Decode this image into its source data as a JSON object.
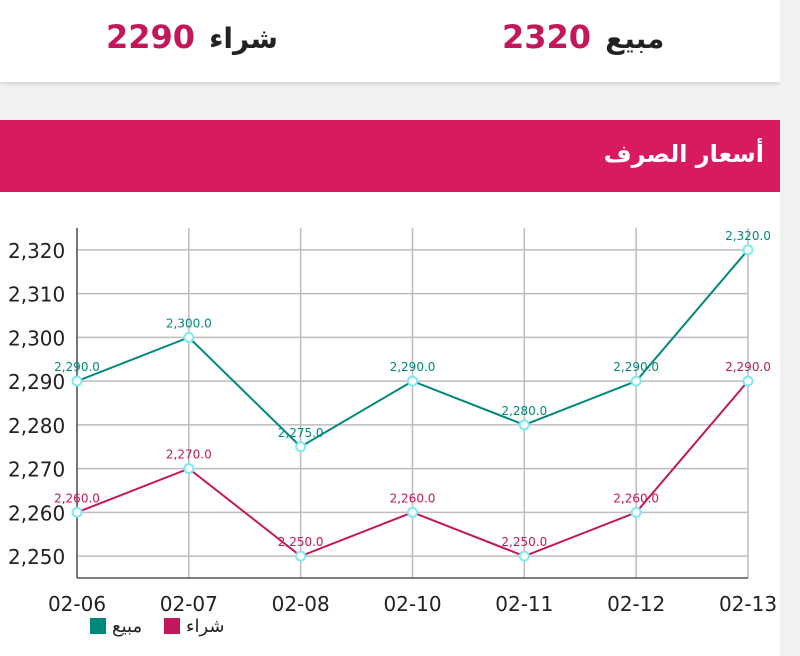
{
  "rates": {
    "buy": {
      "label": "شراء",
      "value": "2290"
    },
    "sell": {
      "label": "مبيع",
      "value": "2320"
    }
  },
  "chart_header": {
    "title": "أسعار الصرف"
  },
  "colors": {
    "accent": "#d81b60",
    "value_text": "#c2185b",
    "sell_series": "#00897b",
    "buy_series": "#c2185b",
    "point_outline": "#7fe9f0"
  },
  "chart_data": {
    "type": "line",
    "categories": [
      "02-06",
      "02-07",
      "02-08",
      "02-10",
      "02-11",
      "02-12",
      "02-13"
    ],
    "series": [
      {
        "name": "مبيع",
        "color": "#00897b",
        "values": [
          2290,
          2300,
          2275,
          2290,
          2280,
          2290,
          2320
        ]
      },
      {
        "name": "شراء",
        "color": "#c2185b",
        "values": [
          2260,
          2270,
          2250,
          2260,
          2250,
          2260,
          2290
        ]
      }
    ],
    "y_ticks": [
      2250,
      2260,
      2270,
      2280,
      2290,
      2300,
      2310,
      2320
    ],
    "ylim": [
      2245,
      2325
    ],
    "grid": true,
    "legend": "bottom-left",
    "title": "",
    "xlabel": "",
    "ylabel": ""
  }
}
